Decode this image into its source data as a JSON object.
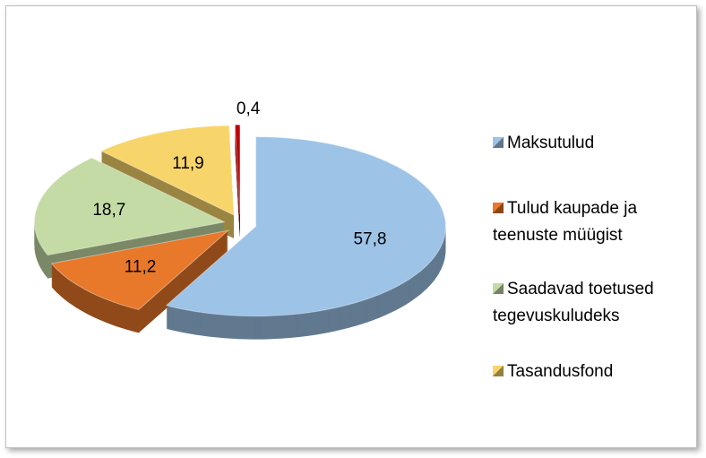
{
  "chart_data": {
    "type": "pie",
    "categories": [
      "Maksutulud",
      "Tulud kaupade ja teenuste müügist",
      "Saadavad toetused tegevuskuludeks",
      "Tasandusfond",
      null
    ],
    "values": [
      57.8,
      11.2,
      18.7,
      11.9,
      0.4
    ],
    "value_labels": [
      "57,8",
      "11,2",
      "18,7",
      "11,9",
      "0,4"
    ],
    "colors": [
      "#9dc3e6",
      "#e8782a",
      "#c5dba6",
      "#f8d56b",
      "#c00000"
    ],
    "legend": "right"
  }
}
